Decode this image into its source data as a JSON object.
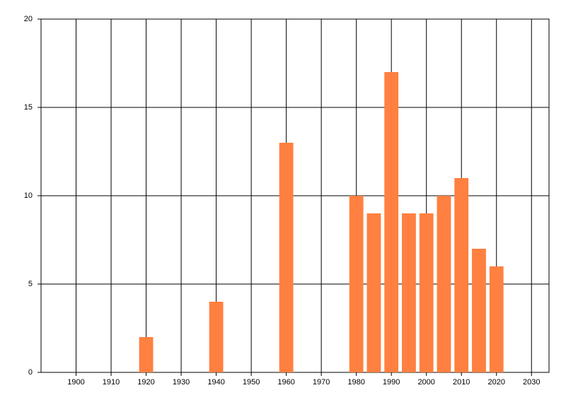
{
  "chart_data": {
    "type": "bar",
    "x": [
      1920,
      1940,
      1960,
      1980,
      1985,
      1990,
      1995,
      2000,
      2005,
      2010,
      2015,
      2020
    ],
    "values": [
      2,
      4,
      13,
      10,
      9,
      17,
      9,
      9,
      10,
      11,
      7,
      6
    ],
    "color": "#ff8040",
    "xlim": [
      1890,
      2035
    ],
    "xticks": [
      1900,
      1910,
      1920,
      1930,
      1940,
      1950,
      1960,
      1970,
      1980,
      1990,
      2000,
      2010,
      2020,
      2030
    ],
    "ylim": [
      0,
      20
    ],
    "yticks": [
      0,
      5,
      10,
      15,
      20
    ],
    "grid": true
  }
}
